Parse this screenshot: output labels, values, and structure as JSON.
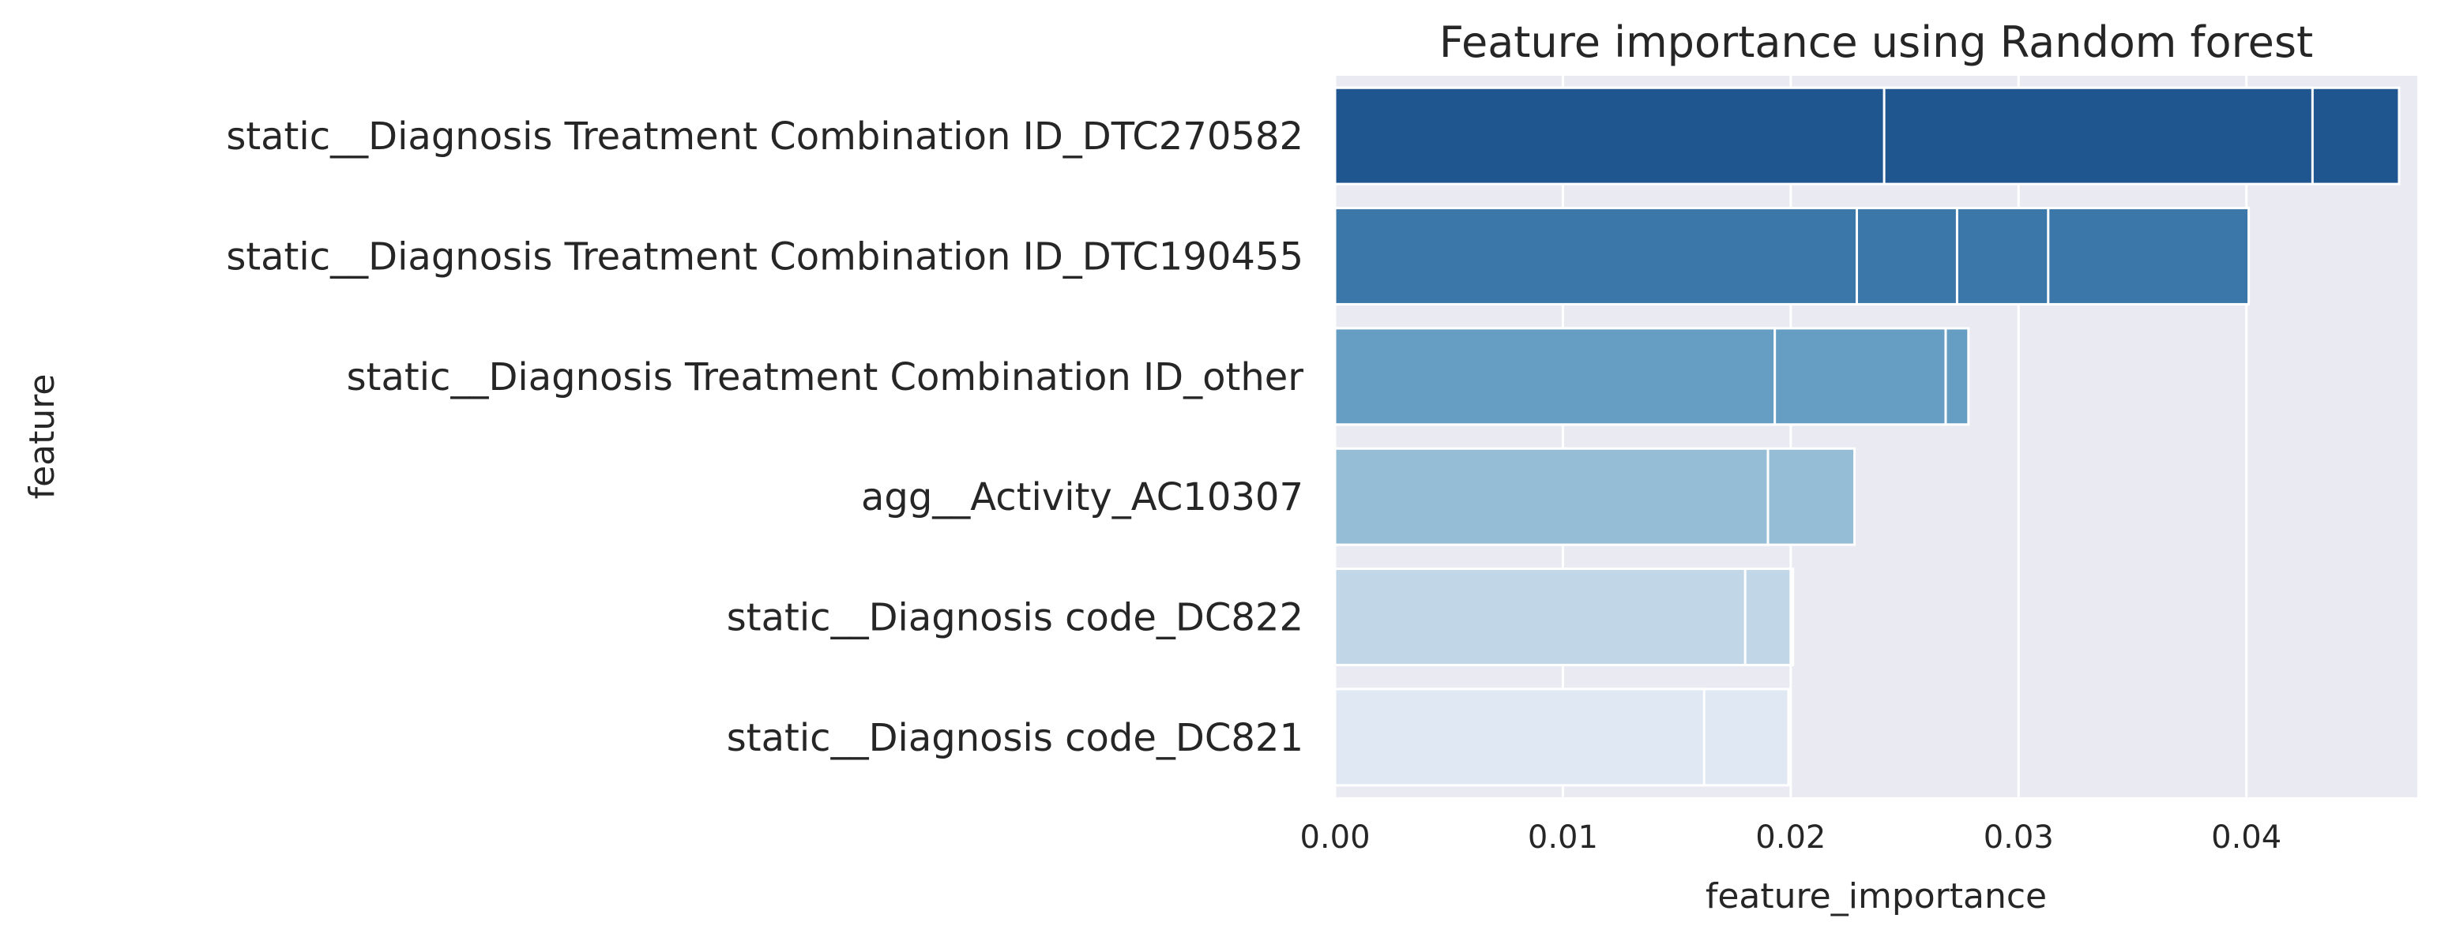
{
  "chart_data": {
    "type": "bar",
    "orientation": "horizontal",
    "title": "Feature importance using Random forest",
    "xlabel": "feature_importance",
    "ylabel": "feature",
    "xlim": [
      0,
      0.0475
    ],
    "xticks": [
      0.0,
      0.01,
      0.02,
      0.03,
      0.04
    ],
    "xtick_labels": [
      "0.00",
      "0.01",
      "0.02",
      "0.03",
      "0.04"
    ],
    "grid": true,
    "categories": [
      "static__Diagnosis Treatment Combination ID_DTC270582",
      "static__Diagnosis Treatment Combination ID_DTC190455",
      "static__Diagnosis Treatment Combination ID_other",
      "agg__Activity_AC10307",
      "static__Diagnosis code_DC822",
      "static__Diagnosis code_DC821"
    ],
    "colors": [
      "#20568f",
      "#3b78a9",
      "#659dc3",
      "#95bdd5",
      "#c1d6e7",
      "#dfe8f3"
    ],
    "background_color": "#eaeaf2",
    "grid_color": "#ffffff",
    "overlapping_bars": [
      [
        0.0241,
        0.0429,
        0.0467
      ],
      [
        0.0229,
        0.0273,
        0.0313,
        0.0401
      ],
      [
        0.0193,
        0.0268,
        0.0278
      ],
      [
        0.019,
        0.0228
      ],
      [
        0.018,
        0.02,
        0.0201
      ],
      [
        0.0162,
        0.0199
      ]
    ]
  }
}
